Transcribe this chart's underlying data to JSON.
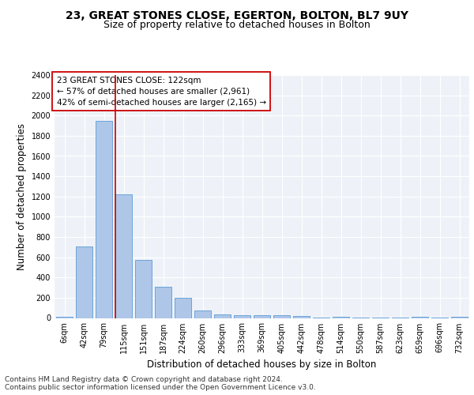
{
  "title1": "23, GREAT STONES CLOSE, EGERTON, BOLTON, BL7 9UY",
  "title2": "Size of property relative to detached houses in Bolton",
  "xlabel": "Distribution of detached houses by size in Bolton",
  "ylabel": "Number of detached properties",
  "categories": [
    "6sqm",
    "42sqm",
    "79sqm",
    "115sqm",
    "151sqm",
    "187sqm",
    "224sqm",
    "260sqm",
    "296sqm",
    "333sqm",
    "369sqm",
    "405sqm",
    "442sqm",
    "478sqm",
    "514sqm",
    "550sqm",
    "587sqm",
    "623sqm",
    "659sqm",
    "696sqm",
    "732sqm"
  ],
  "values": [
    10,
    710,
    1950,
    1225,
    575,
    305,
    200,
    75,
    35,
    30,
    25,
    30,
    20,
    5,
    10,
    5,
    2,
    2,
    10,
    2,
    10
  ],
  "bar_color": "#aec6e8",
  "bar_edge_color": "#5b9bd5",
  "vline_x_index": 3,
  "vline_color": "#cc0000",
  "annotation_text": "23 GREAT STONES CLOSE: 122sqm\n← 57% of detached houses are smaller (2,961)\n42% of semi-detached houses are larger (2,165) →",
  "annotation_box_color": "#ffffff",
  "annotation_box_edge": "#cc0000",
  "ylim": [
    0,
    2400
  ],
  "yticks": [
    0,
    200,
    400,
    600,
    800,
    1000,
    1200,
    1400,
    1600,
    1800,
    2000,
    2200,
    2400
  ],
  "footnote": "Contains HM Land Registry data © Crown copyright and database right 2024.\nContains public sector information licensed under the Open Government Licence v3.0.",
  "bg_color": "#eef2f8",
  "grid_color": "#ffffff",
  "title1_fontsize": 10,
  "title2_fontsize": 9,
  "xlabel_fontsize": 8.5,
  "ylabel_fontsize": 8.5,
  "annotation_fontsize": 7.5,
  "footnote_fontsize": 6.5,
  "tick_fontsize": 7
}
